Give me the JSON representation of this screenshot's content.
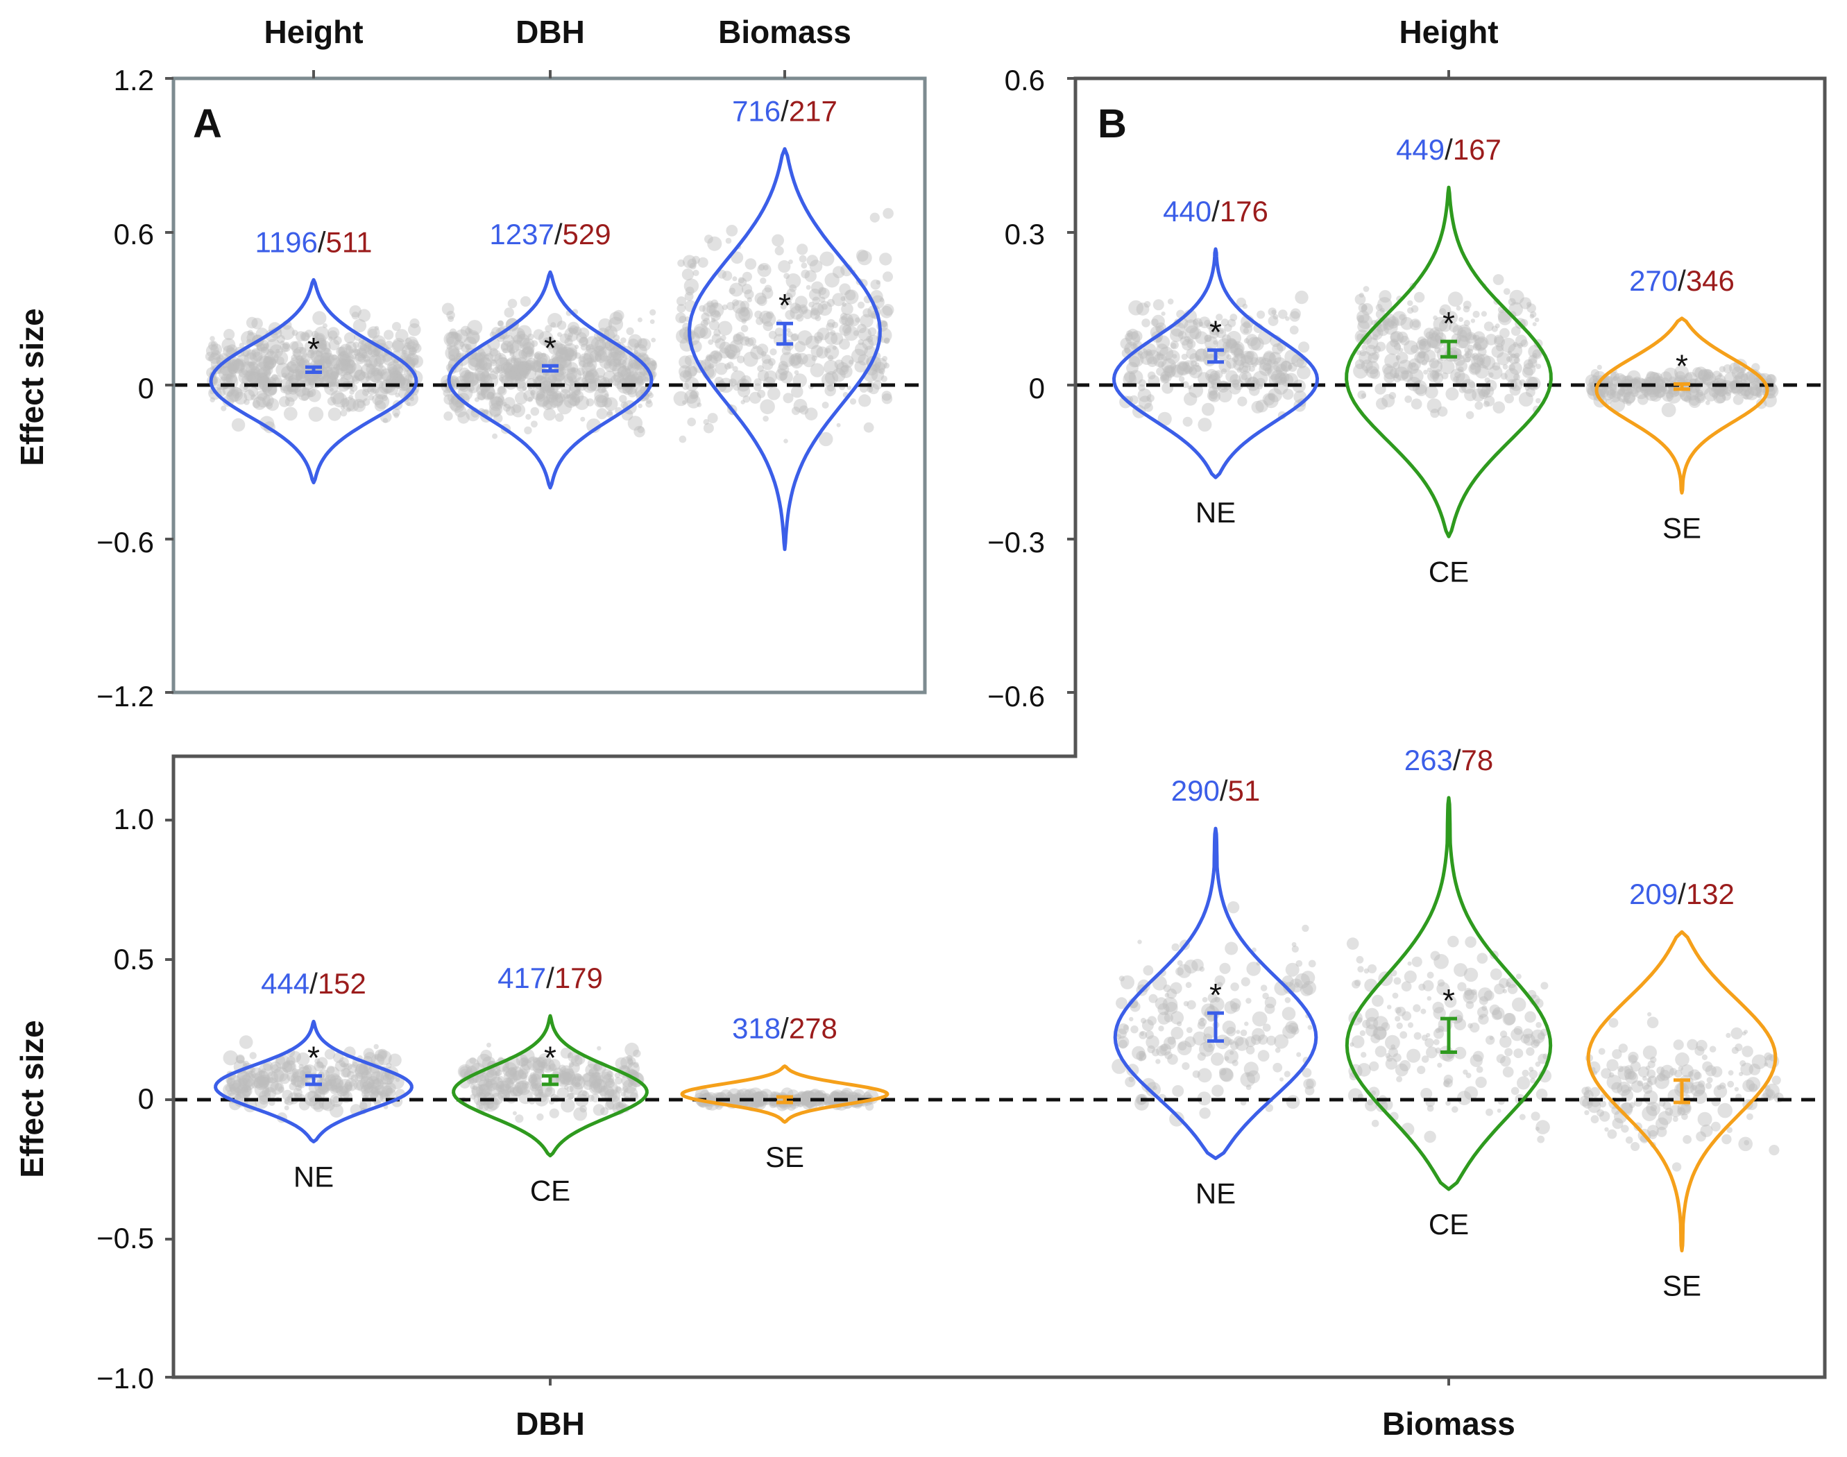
{
  "colors": {
    "blue": "#3b5ee8",
    "green": "#2e9a1e",
    "orange": "#f5a01a",
    "red": "#9b1c1c",
    "dots": "#bdbdbd",
    "frame_a": "#7d8b90",
    "frame_b": "#555555"
  },
  "panel_a": {
    "letter": "A",
    "ylabel": "Effect size",
    "yticks": [
      "1.2",
      "0.6",
      "0",
      "−0.6",
      "−1.2"
    ],
    "top_labels": [
      "Height",
      "DBH",
      "Biomass"
    ]
  },
  "panel_b": {
    "letter": "B",
    "top_height_label": "Height",
    "ylabel_bottom": "Effect size",
    "yticks_upper": [
      "0.6",
      "0.3",
      "0",
      "−0.3",
      "−0.6"
    ],
    "yticks_lower": [
      "1.0",
      "0.5",
      "0",
      "−0.5",
      "−1.0"
    ],
    "bottom_labels": [
      "DBH",
      "Biomass"
    ]
  },
  "chart_data": [
    {
      "panel": "A",
      "type": "violin",
      "ylim": [
        -1.2,
        1.2
      ],
      "ylabel": "Effect size",
      "categories": [
        "Height",
        "DBH",
        "Biomass"
      ],
      "series": [
        {
          "category": "Height",
          "n_blue": "1196",
          "n_red": "511",
          "mean": 0.06,
          "ci": [
            0.05,
            0.07
          ],
          "significant": true,
          "range": [
            -0.38,
            0.41
          ]
        },
        {
          "category": "DBH",
          "n_blue": "1237",
          "n_red": "529",
          "mean": 0.065,
          "ci": [
            0.055,
            0.075
          ],
          "significant": true,
          "range": [
            -0.4,
            0.44
          ]
        },
        {
          "category": "Biomass",
          "n_blue": "716",
          "n_red": "217",
          "mean": 0.2,
          "ci": [
            0.16,
            0.24
          ],
          "significant": true,
          "range": [
            -0.64,
            0.92
          ]
        }
      ]
    },
    {
      "panel": "B-Height",
      "type": "violin",
      "ylim": [
        -0.6,
        0.6
      ],
      "categories": [
        "NE",
        "CE",
        "SE"
      ],
      "series": [
        {
          "category": "NE",
          "n_blue": "440",
          "n_red": "176",
          "mean": 0.055,
          "ci": [
            0.045,
            0.068
          ],
          "significant": true,
          "range": [
            -0.18,
            0.265
          ]
        },
        {
          "category": "CE",
          "n_blue": "449",
          "n_red": "167",
          "mean": 0.07,
          "ci": [
            0.055,
            0.085
          ],
          "significant": true,
          "range": [
            -0.295,
            0.385
          ]
        },
        {
          "category": "SE",
          "n_blue": "270",
          "n_red": "346",
          "mean": -0.003,
          "ci": [
            -0.008,
            0.002
          ],
          "significant": true,
          "range": [
            -0.21,
            0.13
          ]
        }
      ]
    },
    {
      "panel": "B-DBH",
      "type": "violin",
      "ylim": [
        -1.0,
        1.0
      ],
      "categories": [
        "NE",
        "CE",
        "SE"
      ],
      "series": [
        {
          "category": "NE",
          "n_blue": "444",
          "n_red": "152",
          "mean": 0.07,
          "ci": [
            0.055,
            0.085
          ],
          "significant": true,
          "range": [
            -0.15,
            0.28
          ]
        },
        {
          "category": "CE",
          "n_blue": "417",
          "n_red": "179",
          "mean": 0.07,
          "ci": [
            0.055,
            0.085
          ],
          "significant": true,
          "range": [
            -0.2,
            0.3
          ]
        },
        {
          "category": "SE",
          "n_blue": "318",
          "n_red": "278",
          "mean": 0.0,
          "ci": [
            -0.01,
            0.01
          ],
          "significant": false,
          "range": [
            -0.08,
            0.12
          ]
        }
      ]
    },
    {
      "panel": "B-Biomass",
      "type": "violin",
      "ylim": [
        -1.0,
        1.0
      ],
      "categories": [
        "NE",
        "CE",
        "SE"
      ],
      "series": [
        {
          "category": "NE",
          "n_blue": "290",
          "n_red": "51",
          "mean": 0.26,
          "ci": [
            0.21,
            0.31
          ],
          "significant": true,
          "range": [
            -0.21,
            0.97
          ]
        },
        {
          "category": "CE",
          "n_blue": "263",
          "n_red": "78",
          "mean": 0.23,
          "ci": [
            0.17,
            0.29
          ],
          "significant": true,
          "range": [
            -0.32,
            1.08
          ]
        },
        {
          "category": "SE",
          "n_blue": "209",
          "n_red": "132",
          "mean": 0.03,
          "ci": [
            -0.01,
            0.07
          ],
          "significant": false,
          "range": [
            -0.54,
            0.6
          ]
        }
      ]
    }
  ]
}
